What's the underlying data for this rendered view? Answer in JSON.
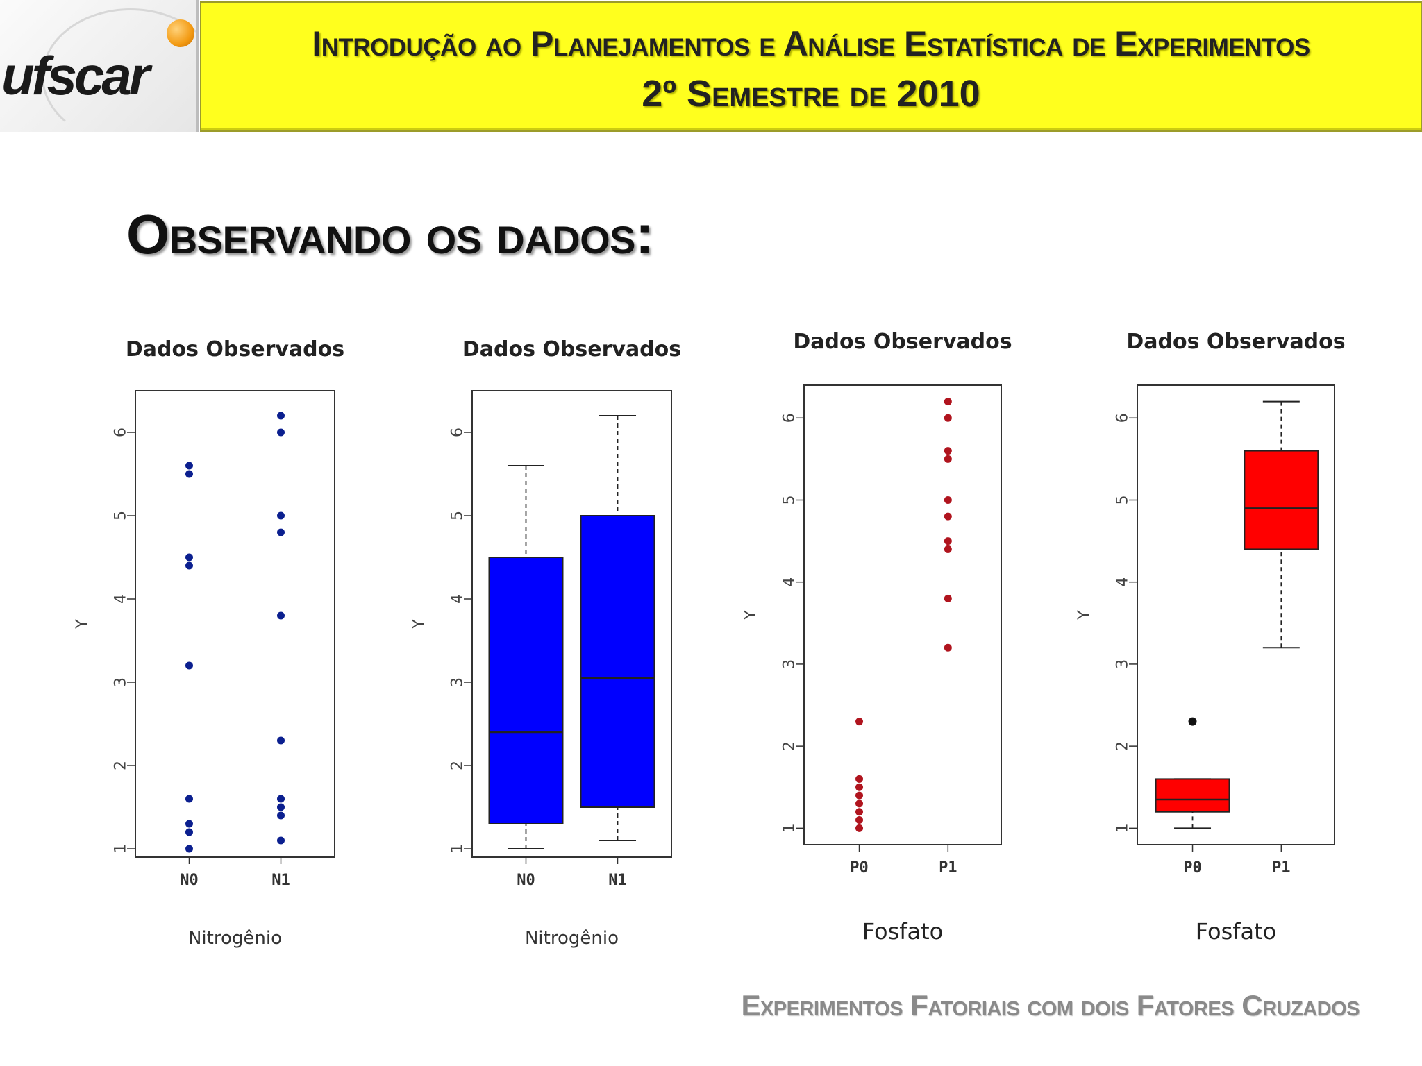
{
  "header": {
    "logo_text": "ufscar",
    "line1": "Introdução ao Planejamentos e Análise Estatística de Experimentos",
    "line2": "2º Semestre de 2010",
    "band_color": "#ffff1e"
  },
  "slide_title": "Observando os dados:",
  "footer": "Experimentos Fatoriais com dois Fatores Cruzados",
  "chart_data": [
    {
      "type": "scatter",
      "title": "Dados Observados",
      "xlabel": "Nitrogênio",
      "ylabel": "Y",
      "categories": [
        "N0",
        "N1"
      ],
      "yticks": [
        "1",
        "2",
        "3",
        "4",
        "5",
        "6"
      ],
      "ylim": [
        0.9,
        6.5
      ],
      "color": "#0b1f8f",
      "points": [
        {
          "x": "N0",
          "values": [
            1.0,
            1.2,
            1.3,
            1.6,
            3.2,
            4.4,
            4.5,
            5.5,
            5.6
          ]
        },
        {
          "x": "N1",
          "values": [
            1.1,
            1.4,
            1.5,
            1.6,
            2.3,
            3.8,
            4.8,
            5.0,
            6.0,
            6.2
          ]
        }
      ]
    },
    {
      "type": "box",
      "title": "Dados Observados",
      "xlabel": "Nitrogênio",
      "ylabel": "Y",
      "categories": [
        "N0",
        "N1"
      ],
      "yticks": [
        "1",
        "2",
        "3",
        "4",
        "5",
        "6"
      ],
      "ylim": [
        0.9,
        6.5
      ],
      "color": "#0000ff",
      "boxes": [
        {
          "x": "N0",
          "min": 1.0,
          "q1": 1.3,
          "median": 2.4,
          "q3": 4.5,
          "max": 5.6,
          "outliers": []
        },
        {
          "x": "N1",
          "min": 1.1,
          "q1": 1.5,
          "median": 3.05,
          "q3": 5.0,
          "max": 6.2,
          "outliers": []
        }
      ]
    },
    {
      "type": "scatter",
      "title": "Dados Observados",
      "xlabel": "Fosfato",
      "ylabel": "Y",
      "categories": [
        "P0",
        "P1"
      ],
      "yticks": [
        "1",
        "2",
        "3",
        "4",
        "5",
        "6"
      ],
      "ylim": [
        0.8,
        6.4
      ],
      "color": "#b0141e",
      "points": [
        {
          "x": "P0",
          "values": [
            1.0,
            1.1,
            1.2,
            1.3,
            1.4,
            1.5,
            1.6,
            2.3
          ]
        },
        {
          "x": "P1",
          "values": [
            3.2,
            3.8,
            4.4,
            4.5,
            4.8,
            5.0,
            5.5,
            5.6,
            6.0,
            6.2
          ]
        }
      ]
    },
    {
      "type": "box",
      "title": "Dados Observados",
      "xlabel": "Fosfato",
      "ylabel": "Y",
      "categories": [
        "P0",
        "P1"
      ],
      "yticks": [
        "1",
        "2",
        "3",
        "4",
        "5",
        "6"
      ],
      "ylim": [
        0.8,
        6.4
      ],
      "color": "#ff0000",
      "boxes": [
        {
          "x": "P0",
          "min": 1.0,
          "q1": 1.2,
          "median": 1.35,
          "q3": 1.6,
          "max": 1.6,
          "outliers": [
            2.3
          ]
        },
        {
          "x": "P1",
          "min": 3.2,
          "q1": 4.4,
          "median": 4.9,
          "q3": 5.6,
          "max": 6.2,
          "outliers": []
        }
      ]
    }
  ]
}
